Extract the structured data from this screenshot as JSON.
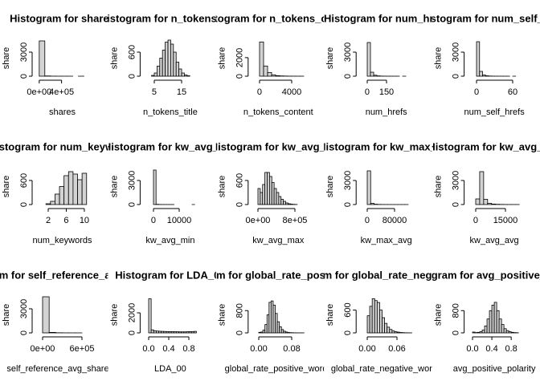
{
  "chart_data": [
    {
      "type": "histogram",
      "title": "Histogram for  shares",
      "xlabel": "shares",
      "ylabel": "share",
      "bins": [
        0,
        100000,
        200000,
        300000,
        400000,
        500000,
        600000,
        700000,
        800000
      ],
      "counts": [
        4400,
        30,
        8,
        3,
        2,
        1,
        0,
        1
      ],
      "xlim": [
        -55000,
        880000
      ],
      "ylim": [
        0,
        4500
      ],
      "xticks": [
        {
          "value": 0,
          "label": "0e+00"
        },
        {
          "value": 400000,
          "label": "4e+05"
        }
      ],
      "yticks": [
        0,
        3000
      ]
    },
    {
      "type": "histogram",
      "title": "Histogram for  n_tokens_title",
      "xlabel": "n_tokens_title",
      "ylabel": "share",
      "bins": [
        4,
        5,
        6,
        7,
        8,
        9,
        10,
        11,
        12,
        13,
        14,
        15,
        16,
        17,
        18
      ],
      "counts": [
        20,
        80,
        250,
        450,
        650,
        850,
        900,
        800,
        600,
        350,
        180,
        80,
        30,
        10
      ],
      "xlim": [
        1.3,
        20.4
      ],
      "ylim": [
        0,
        900
      ],
      "xticks": [
        5,
        15
      ],
      "yticks": [
        0,
        600
      ]
    },
    {
      "type": "histogram",
      "title": "Histogram for  n_tokens_content",
      "xlabel": "n_tokens_content",
      "ylabel": "share",
      "bins": [
        0,
        500,
        1000,
        1500,
        2000,
        2500,
        3000,
        3500,
        4000,
        4500,
        5000,
        5500
      ],
      "counts": [
        3700,
        1100,
        400,
        150,
        60,
        30,
        15,
        8,
        5,
        3,
        2
      ],
      "xlim": [
        -920,
        5580
      ],
      "ylim": [
        0,
        3900
      ],
      "xticks": [
        0,
        4000
      ],
      "yticks": [
        0,
        2000
      ]
    },
    {
      "type": "histogram",
      "title": "Histogram for  num_hrefs",
      "xlabel": "num_hrefs",
      "ylabel": "share",
      "bins": [
        0,
        25,
        50,
        75,
        100,
        125,
        150,
        175,
        200,
        225,
        250,
        275,
        300
      ],
      "counts": [
        4200,
        500,
        120,
        40,
        15,
        8,
        4,
        2,
        1,
        1,
        0,
        1
      ],
      "xlim": [
        -55,
        351
      ],
      "ylim": [
        0,
        4500
      ],
      "xticks": [
        0,
        150
      ],
      "yticks": [
        0,
        3000
      ]
    },
    {
      "type": "histogram",
      "title": "Histogram for  num_self_hrefs",
      "xlabel": "num_self_hrefs",
      "ylabel": "share",
      "bins": [
        0,
        5,
        10,
        15,
        20,
        25,
        30,
        35,
        40,
        45,
        50,
        55,
        60,
        65
      ],
      "counts": [
        4300,
        600,
        150,
        50,
        20,
        10,
        5,
        3,
        2,
        1,
        1,
        0,
        1
      ],
      "xlim": [
        -13.9,
        72.8
      ],
      "ylim": [
        0,
        4500
      ],
      "xticks": [
        0,
        60
      ],
      "yticks": [
        0,
        3000
      ]
    },
    {
      "type": "histogram",
      "title": "Histogram for  num_keywords",
      "xlabel": "num_keywords",
      "ylabel": "share",
      "bins": [
        1.5,
        2.5,
        3.5,
        4.5,
        5.5,
        6.5,
        7.5,
        8.5,
        9.5,
        10.5
      ],
      "counts": [
        20,
        80,
        260,
        450,
        720,
        820,
        760,
        620,
        780
      ],
      "xlim": [
        -0.67,
        10.9
      ],
      "ylim": [
        0,
        900
      ],
      "xticks": [
        2,
        6,
        10
      ],
      "yticks": [
        0,
        600
      ]
    },
    {
      "type": "histogram",
      "title": "Histogram for  kw_avg_min",
      "xlabel": "kw_avg_min",
      "ylabel": "share",
      "bins": [
        0,
        1000,
        2000,
        3000,
        4000,
        5000,
        6000,
        7000,
        8000,
        9000,
        10000,
        11000,
        12000,
        13000,
        14000,
        15000,
        16000
      ],
      "counts": [
        4300,
        30,
        10,
        5,
        3,
        2,
        1,
        1,
        0,
        0,
        0,
        0,
        0,
        0,
        0,
        1
      ],
      "xlim": [
        -3625,
        16687
      ],
      "ylim": [
        0,
        4500
      ],
      "xticks": [
        0,
        10000
      ],
      "yticks": [
        0,
        3000
      ]
    },
    {
      "type": "histogram",
      "title": "Histogram for  kw_avg_max",
      "xlabel": "kw_avg_max",
      "ylabel": "share",
      "bins": [
        0,
        50000,
        100000,
        150000,
        200000,
        250000,
        300000,
        350000,
        400000,
        450000,
        500000,
        550000,
        600000,
        650000,
        700000,
        750000,
        800000,
        850000
      ],
      "counts": [
        400,
        300,
        500,
        800,
        800,
        700,
        550,
        400,
        300,
        200,
        130,
        80,
        40,
        20,
        10,
        5,
        2
      ],
      "xlim": [
        -125217,
        1005217
      ],
      "ylim": [
        0,
        900
      ],
      "xticks": [
        {
          "value": 0,
          "label": "0e+00"
        },
        {
          "value": 800000,
          "label": "8e+05"
        }
      ],
      "yticks": [
        0,
        600
      ]
    },
    {
      "type": "histogram",
      "title": "Histogram for  kw_max_avg",
      "xlabel": "kw_max_avg",
      "ylabel": "share",
      "bins": [
        0,
        10000,
        20000,
        30000,
        40000,
        50000,
        60000,
        70000,
        80000,
        90000,
        100000,
        110000,
        120000
      ],
      "counts": [
        4200,
        150,
        40,
        15,
        8,
        5,
        3,
        2,
        1,
        1,
        1,
        1
      ],
      "xlim": [
        -20706,
        132235
      ],
      "ylim": [
        0,
        4500
      ],
      "xticks": [
        0,
        80000
      ],
      "yticks": [
        0,
        3000
      ]
    },
    {
      "type": "histogram",
      "title": "Histogram for  kw_avg_avg",
      "xlabel": "kw_avg_avg",
      "ylabel": "share",
      "bins": [
        0,
        2000,
        4000,
        6000,
        8000,
        10000,
        12000,
        14000,
        16000,
        18000,
        20000,
        22000
      ],
      "counts": [
        700,
        4100,
        650,
        150,
        60,
        30,
        15,
        8,
        5,
        3,
        2
      ],
      "xlim": [
        -3811,
        22540
      ],
      "ylim": [
        0,
        4500
      ],
      "xticks": [
        0,
        15000
      ],
      "yticks": [
        0,
        3000
      ]
    },
    {
      "type": "histogram",
      "title": "Histogram for  self_reference_avg_sharess",
      "xlabel": "self_reference_avg_sharess",
      "ylabel": "share",
      "bins": [
        0,
        100000,
        200000,
        300000,
        400000,
        500000,
        600000
      ],
      "counts": [
        4500,
        60,
        15,
        5,
        2,
        1
      ],
      "xlim": [
        -97959,
        697959
      ],
      "ylim": [
        0,
        4500
      ],
      "xticks": [
        {
          "value": 0,
          "label": "0e+00"
        },
        {
          "value": 600000,
          "label": "6e+05"
        }
      ],
      "yticks": [
        0,
        3000
      ]
    },
    {
      "type": "histogram",
      "title": "Histogram for  LDA_00",
      "xlabel": "LDA_00",
      "ylabel": "share",
      "bins": [
        0,
        0.05,
        0.1,
        0.15,
        0.2,
        0.25,
        0.3,
        0.35,
        0.4,
        0.45,
        0.5,
        0.55,
        0.6,
        0.65,
        0.7,
        0.75,
        0.8,
        0.85,
        0.9,
        0.95
      ],
      "counts": [
        3400,
        300,
        200,
        180,
        160,
        150,
        140,
        130,
        120,
        120,
        110,
        110,
        100,
        100,
        100,
        110,
        120,
        130,
        150
      ],
      "xlim": [
        -0.0896,
        0.95
      ],
      "ylim": [
        0,
        3600
      ],
      "xticks": [
        {
          "value": 0,
          "label": "0.0"
        },
        {
          "value": 0.4,
          "label": "0.4"
        },
        {
          "value": 0.8,
          "label": "0.8"
        }
      ],
      "yticks": [
        0,
        2000
      ]
    },
    {
      "type": "histogram",
      "title": "Histogram for  global_rate_positive_words",
      "xlabel": "global_rate_positive_words",
      "ylabel": "share",
      "bins": [
        0,
        0.005,
        0.01,
        0.015,
        0.02,
        0.025,
        0.03,
        0.035,
        0.04,
        0.045,
        0.05,
        0.055,
        0.06,
        0.065,
        0.07,
        0.075,
        0.08,
        0.085,
        0.09,
        0.095,
        0.1,
        0.105,
        0.11
      ],
      "counts": [
        20,
        30,
        100,
        300,
        650,
        1100,
        1150,
        1000,
        700,
        400,
        220,
        120,
        60,
        30,
        15,
        8,
        5,
        3,
        2,
        1,
        1,
        1
      ],
      "xlim": [
        -0.016,
        0.1108
      ],
      "ylim": [
        0,
        1300
      ],
      "xticks": [
        {
          "value": 0,
          "label": "0.00"
        },
        {
          "value": 0.08,
          "label": "0.08"
        }
      ],
      "yticks": [
        0,
        800
      ]
    },
    {
      "type": "histogram",
      "title": "Histogram for  global_rate_negative_words",
      "xlabel": "global_rate_negative_words",
      "ylabel": "share",
      "bins": [
        0,
        0.005,
        0.01,
        0.015,
        0.02,
        0.025,
        0.03,
        0.035,
        0.04,
        0.045,
        0.05,
        0.055,
        0.06,
        0.065,
        0.07,
        0.075,
        0.08,
        0.085,
        0.09
      ],
      "counts": [
        450,
        700,
        900,
        850,
        800,
        600,
        400,
        250,
        150,
        90,
        50,
        30,
        20,
        10,
        6,
        3,
        2,
        1
      ],
      "xlim": [
        -0.0143,
        0.0911
      ],
      "ylim": [
        0,
        950
      ],
      "xticks": [
        {
          "value": 0,
          "label": "0.00"
        },
        {
          "value": 0.06,
          "label": "0.06"
        }
      ],
      "yticks": [
        0,
        600
      ]
    },
    {
      "type": "histogram",
      "title": "Histogram for  avg_positive_polarity",
      "xlabel": "avg_positive_polarity",
      "ylabel": "share",
      "bins": [
        0,
        0.05,
        0.1,
        0.15,
        0.2,
        0.25,
        0.3,
        0.35,
        0.4,
        0.45,
        0.5,
        0.55,
        0.6,
        0.65,
        0.7,
        0.75,
        0.8,
        0.85,
        0.9,
        0.95
      ],
      "counts": [
        30,
        10,
        20,
        40,
        100,
        250,
        500,
        800,
        1000,
        1100,
        800,
        500,
        300,
        150,
        80,
        40,
        20,
        10,
        5
      ],
      "xlim": [
        -0.09,
        0.99
      ],
      "ylim": [
        0,
        1300
      ],
      "xticks": [
        {
          "value": 0,
          "label": "0.0"
        },
        {
          "value": 0.4,
          "label": "0.4"
        },
        {
          "value": 0.8,
          "label": "0.8"
        }
      ],
      "yticks": [
        0,
        800
      ]
    }
  ]
}
